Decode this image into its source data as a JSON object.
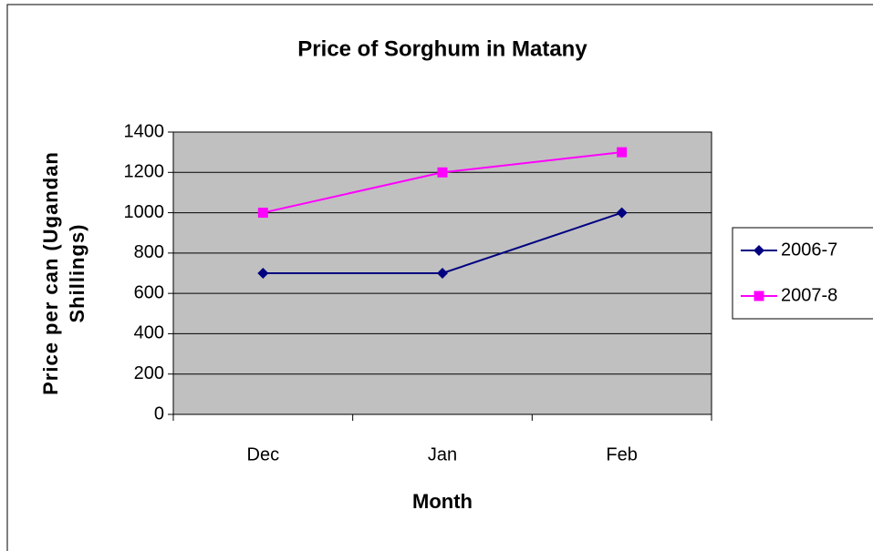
{
  "chart_data": {
    "type": "line",
    "title": "Price of Sorghum in Matany",
    "xlabel": "Month",
    "ylabel": [
      "Price per can (Ugandan",
      "Shillings)"
    ],
    "categories": [
      "Dec",
      "Jan",
      "Feb"
    ],
    "series": [
      {
        "name": "2006-7",
        "color": "#000080",
        "marker": "diamond",
        "values": [
          700,
          700,
          1000
        ]
      },
      {
        "name": "2007-8",
        "color": "#ff00ff",
        "marker": "square",
        "values": [
          1000,
          1200,
          1300
        ]
      }
    ],
    "ylim": [
      0,
      1400
    ],
    "yticks": [
      0,
      200,
      400,
      600,
      800,
      1000,
      1200,
      1400
    ],
    "grid": true,
    "plot_background": "#c0c0c0",
    "legend": "right"
  }
}
